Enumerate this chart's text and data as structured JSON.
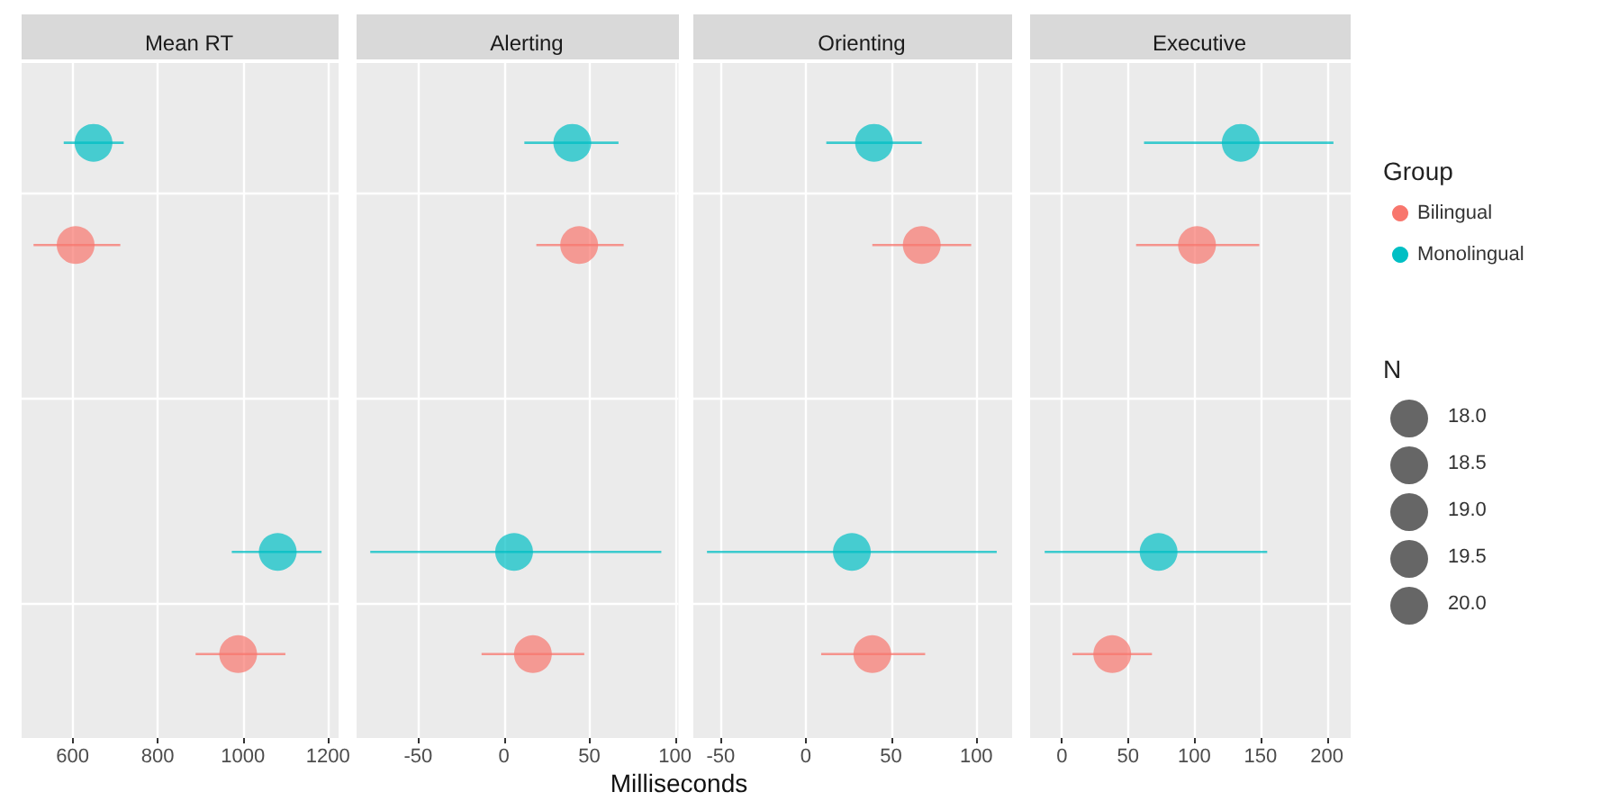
{
  "chart_data": [
    {
      "type": "scatter",
      "title": "Mean RT",
      "orientation": "horizontal",
      "categories": [
        null,
        null,
        null
      ],
      "xlim": [
        480,
        1225
      ],
      "xticks": [
        600,
        800,
        1000,
        1200
      ],
      "grid": true,
      "tick_labels": "x",
      "marker": "circle",
      "series": [
        {
          "color": "#f8766d",
          "values": [
            607,
            null,
            989
          ],
          "errors": [
            [
              508,
              712
            ],
            null,
            [
              889,
              1100
            ]
          ]
        },
        {
          "color": "#00bfc4",
          "values": [
            649,
            null,
            1082
          ],
          "errors": [
            [
              579,
              720
            ],
            null,
            [
              974,
              1185
            ]
          ]
        }
      ]
    },
    {
      "type": "scatter",
      "title": "Alerting",
      "xlabel": "Milliseconds",
      "orientation": "horizontal",
      "categories": [
        null,
        null,
        null
      ],
      "xlim": [
        -86,
        102
      ],
      "xticks": [
        -50,
        0,
        50,
        100
      ],
      "grid": true,
      "tick_labels": "x",
      "marker": "circle",
      "series": [
        {
          "color": "#f8766d",
          "values": [
            44,
            null,
            17
          ],
          "errors": [
            [
              19,
              70
            ],
            null,
            [
              -13,
              47
            ]
          ]
        },
        {
          "color": "#00bfc4",
          "values": [
            40,
            null,
            6
          ],
          "errors": [
            [
              12,
              67
            ],
            null,
            [
              -78,
              92
            ]
          ]
        }
      ]
    },
    {
      "type": "scatter",
      "title": "Orienting",
      "orientation": "horizontal",
      "categories": [
        null,
        null,
        null
      ],
      "xlim": [
        -66,
        121
      ],
      "xticks": [
        -50,
        0,
        50,
        100
      ],
      "grid": true,
      "tick_labels": "x",
      "marker": "circle",
      "series": [
        {
          "color": "#f8766d",
          "values": [
            68,
            null,
            39
          ],
          "errors": [
            [
              39,
              97
            ],
            null,
            [
              9,
              70
            ]
          ]
        },
        {
          "color": "#00bfc4",
          "values": [
            40,
            null,
            27
          ],
          "errors": [
            [
              12,
              68
            ],
            null,
            [
              -58,
              112
            ]
          ]
        }
      ]
    },
    {
      "type": "scatter",
      "title": "Executive",
      "orientation": "horizontal",
      "categories": [
        null,
        null,
        null
      ],
      "xlim": [
        -24,
        218
      ],
      "xticks": [
        0,
        50,
        100,
        150,
        200
      ],
      "grid": true,
      "tick_labels": "x",
      "marker": "circle",
      "legend": "right",
      "legend_title": "Group",
      "annotations": [
        "N",
        "18.0",
        "18.5",
        "19.0",
        "19.5",
        "20.0"
      ],
      "series": [
        {
          "name": "Bilingual",
          "color": "#f8766d",
          "values": [
            102,
            null,
            38
          ],
          "errors": [
            [
              56,
              149
            ],
            null,
            [
              8,
              68
            ]
          ]
        },
        {
          "name": "Monolingual",
          "color": "#00bfc4",
          "values": [
            135,
            null,
            73
          ],
          "errors": [
            [
              62,
              205
            ],
            null,
            [
              -13,
              155
            ]
          ]
        }
      ]
    }
  ]
}
